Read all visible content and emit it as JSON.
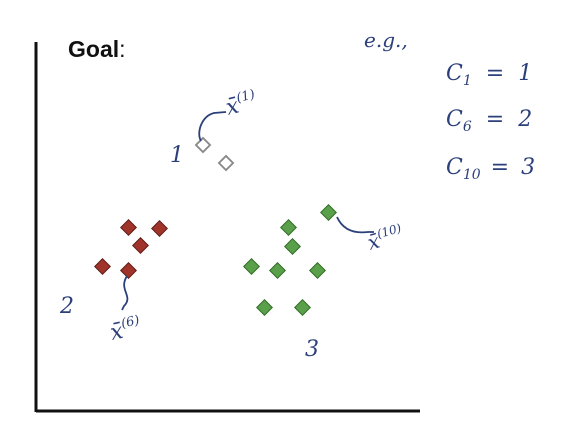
{
  "title": "Goal",
  "title_suffix": ":",
  "example_label": "e.g.,",
  "assignments": [
    {
      "c": "C",
      "sub": "1",
      "eq": "=",
      "val": "1"
    },
    {
      "c": "C",
      "sub": "6",
      "eq": "=",
      "val": "2"
    },
    {
      "c": "C",
      "sub": "10",
      "eq": "=",
      "val": "3"
    }
  ],
  "cluster_labels": [
    "1",
    "2",
    "3"
  ],
  "point_labels": [
    {
      "sym": "x̄",
      "sup": "(1)"
    },
    {
      "sym": "x̄",
      "sup": "(6)"
    },
    {
      "sym": "x̄",
      "sup": "(10)"
    }
  ],
  "colors": {
    "cluster1": "#ffffff",
    "cluster2": "#a0342b",
    "cluster3": "#5aa04a",
    "ink": "#2b3f7a",
    "axis": "#111111"
  }
}
